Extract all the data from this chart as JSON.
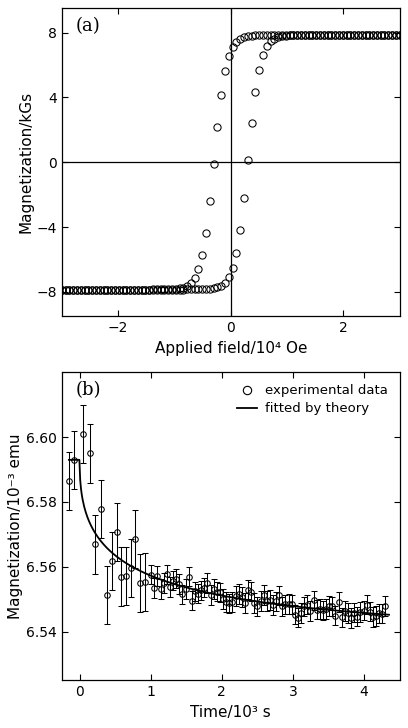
{
  "panel_a": {
    "label": "(a)",
    "xlabel": "Applied field/10⁴ Oe",
    "ylabel": "Magnetization/kGs",
    "xlim": [
      -3.0,
      3.0
    ],
    "ylim": [
      -9.5,
      9.5
    ],
    "xticks": [
      -2,
      0,
      2
    ],
    "yticks": [
      -8,
      -4,
      0,
      4,
      8
    ]
  },
  "panel_b": {
    "label": "(b)",
    "xlabel": "Time/10³ s",
    "ylabel": "Magnetization/10⁻³ emu",
    "xlim": [
      -0.25,
      4.5
    ],
    "ylim": [
      6.525,
      6.62
    ],
    "xticks": [
      0,
      1,
      2,
      3,
      4
    ],
    "yticks": [
      6.54,
      6.56,
      6.58,
      6.6
    ],
    "legend_circle": "experimental data",
    "legend_line": "fitted by theory"
  },
  "background_color": "#ffffff"
}
